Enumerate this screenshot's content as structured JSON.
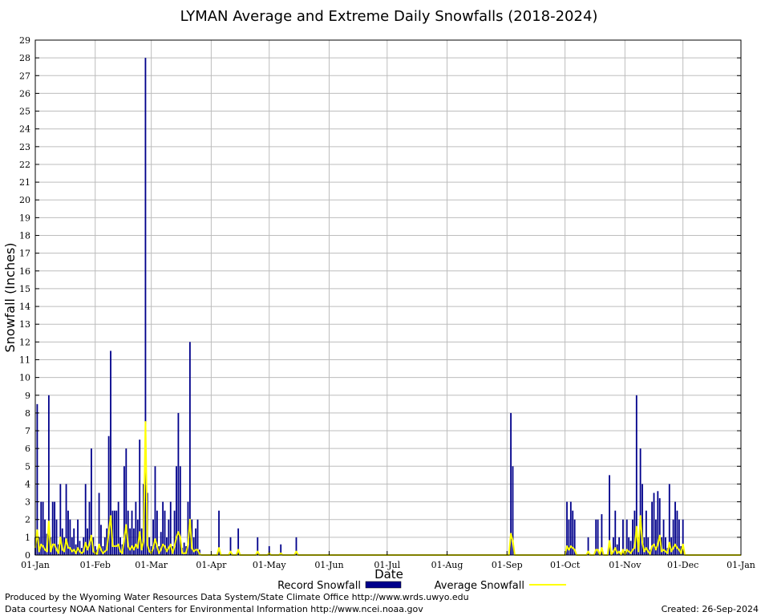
{
  "chart_data": {
    "type": "bar",
    "title": "LYMAN Average and Extreme Daily Snowfalls (2018-2024)",
    "xlabel": "Date",
    "ylabel": "Snowfall (Inches)",
    "ylim": [
      0,
      29
    ],
    "xlim_days": [
      1,
      366
    ],
    "grid": true,
    "x_tick_labels": [
      {
        "label": "01-Jan",
        "day": 1
      },
      {
        "label": "01-Feb",
        "day": 32
      },
      {
        "label": "01-Mar",
        "day": 61
      },
      {
        "label": "01-Apr",
        "day": 92
      },
      {
        "label": "01-May",
        "day": 122
      },
      {
        "label": "01-Jun",
        "day": 153
      },
      {
        "label": "01-Jul",
        "day": 183
      },
      {
        "label": "01-Aug",
        "day": 214
      },
      {
        "label": "01-Sep",
        "day": 245
      },
      {
        "label": "01-Oct",
        "day": 275
      },
      {
        "label": "01-Nov",
        "day": 306
      },
      {
        "label": "01-Dec",
        "day": 336
      },
      {
        "label": "01-Jan",
        "day": 366
      }
    ],
    "y_ticks": [
      0,
      1,
      2,
      3,
      4,
      5,
      6,
      7,
      8,
      9,
      10,
      11,
      12,
      13,
      14,
      15,
      16,
      17,
      18,
      19,
      20,
      21,
      22,
      23,
      24,
      25,
      26,
      27,
      28,
      29
    ],
    "legend": [
      {
        "name": "Record Snowfall",
        "color": "#00008b"
      },
      {
        "name": "Average Snowfall",
        "color": "#ffff00"
      }
    ],
    "series": [
      {
        "name": "Record Snowfall",
        "color": "#00008b",
        "points": [
          [
            1,
            1
          ],
          [
            2,
            8.5
          ],
          [
            3,
            1
          ],
          [
            4,
            3
          ],
          [
            5,
            3
          ],
          [
            6,
            2
          ],
          [
            7,
            1.2
          ],
          [
            8,
            9
          ],
          [
            9,
            1
          ],
          [
            10,
            3
          ],
          [
            11,
            3
          ],
          [
            12,
            2
          ],
          [
            13,
            0.6
          ],
          [
            14,
            4
          ],
          [
            15,
            1.5
          ],
          [
            16,
            1
          ],
          [
            17,
            4
          ],
          [
            18,
            2.5
          ],
          [
            19,
            2
          ],
          [
            20,
            1
          ],
          [
            21,
            1.5
          ],
          [
            22,
            0.6
          ],
          [
            23,
            2
          ],
          [
            24,
            0.8
          ],
          [
            25,
            0.4
          ],
          [
            26,
            1
          ],
          [
            27,
            4
          ],
          [
            28,
            1.5
          ],
          [
            29,
            3
          ],
          [
            30,
            6
          ],
          [
            31,
            1
          ],
          [
            32,
            0.5
          ],
          [
            33,
            0.3
          ],
          [
            34,
            3.5
          ],
          [
            35,
            1.7
          ],
          [
            36,
            0.5
          ],
          [
            37,
            1
          ],
          [
            38,
            1.5
          ],
          [
            39,
            6.7
          ],
          [
            40,
            11.5
          ],
          [
            41,
            2.5
          ],
          [
            42,
            2.5
          ],
          [
            43,
            2.5
          ],
          [
            44,
            3
          ],
          [
            45,
            1
          ],
          [
            46,
            0.6
          ],
          [
            47,
            5
          ],
          [
            48,
            6
          ],
          [
            49,
            2.5
          ],
          [
            50,
            1.5
          ],
          [
            51,
            2.5
          ],
          [
            52,
            1.5
          ],
          [
            53,
            3
          ],
          [
            54,
            2
          ],
          [
            55,
            6.5
          ],
          [
            56,
            1.5
          ],
          [
            57,
            4
          ],
          [
            58,
            28
          ],
          [
            59,
            3.5
          ],
          [
            60,
            1
          ],
          [
            61,
            0.5
          ],
          [
            62,
            2
          ],
          [
            63,
            5
          ],
          [
            64,
            2.5
          ],
          [
            65,
            0.5
          ],
          [
            66,
            1.3
          ],
          [
            67,
            3
          ],
          [
            68,
            2.5
          ],
          [
            69,
            1
          ],
          [
            70,
            2
          ],
          [
            71,
            3
          ],
          [
            72,
            0.5
          ],
          [
            73,
            2.5
          ],
          [
            74,
            5
          ],
          [
            75,
            8
          ],
          [
            76,
            5
          ],
          [
            77,
            0.4
          ],
          [
            78,
            0.7
          ],
          [
            79,
            0.5
          ],
          [
            80,
            3
          ],
          [
            81,
            12
          ],
          [
            82,
            2
          ],
          [
            83,
            1
          ],
          [
            84,
            1.5
          ],
          [
            85,
            2
          ],
          [
            86,
            0.3
          ],
          [
            96,
            2.5
          ],
          [
            102,
            1
          ],
          [
            106,
            1.5
          ],
          [
            116,
            1
          ],
          [
            122,
            0.5
          ],
          [
            128,
            0.6
          ],
          [
            136,
            1
          ],
          [
            247,
            8
          ],
          [
            248,
            5
          ],
          [
            276,
            3
          ],
          [
            277,
            2
          ],
          [
            278,
            3
          ],
          [
            279,
            2.5
          ],
          [
            280,
            2
          ],
          [
            287,
            1
          ],
          [
            291,
            2
          ],
          [
            292,
            2
          ],
          [
            294,
            2.3
          ],
          [
            298,
            4.5
          ],
          [
            300,
            1
          ],
          [
            301,
            2.5
          ],
          [
            302,
            0.6
          ],
          [
            303,
            1
          ],
          [
            305,
            2
          ],
          [
            307,
            2
          ],
          [
            308,
            1
          ],
          [
            309,
            0.8
          ],
          [
            310,
            2
          ],
          [
            311,
            2.5
          ],
          [
            312,
            9
          ],
          [
            313,
            1
          ],
          [
            314,
            6
          ],
          [
            315,
            4
          ],
          [
            316,
            1
          ],
          [
            317,
            2.5
          ],
          [
            318,
            1
          ],
          [
            319,
            0.3
          ],
          [
            320,
            3
          ],
          [
            321,
            3.5
          ],
          [
            322,
            2
          ],
          [
            323,
            3.6
          ],
          [
            324,
            3.2
          ],
          [
            325,
            1
          ],
          [
            326,
            2
          ],
          [
            327,
            1
          ],
          [
            328,
            0.4
          ],
          [
            329,
            4
          ],
          [
            330,
            1
          ],
          [
            331,
            2
          ],
          [
            332,
            3
          ],
          [
            333,
            2.5
          ],
          [
            334,
            2
          ],
          [
            335,
            0.5
          ],
          [
            336,
            2
          ]
        ]
      },
      {
        "name": "Average Snowfall",
        "color": "#ffff00",
        "points": [
          [
            1,
            0.4
          ],
          [
            2,
            1.4
          ],
          [
            3,
            0.2
          ],
          [
            4,
            0.6
          ],
          [
            5,
            0.5
          ],
          [
            6,
            0.3
          ],
          [
            7,
            0.2
          ],
          [
            8,
            1.9
          ],
          [
            9,
            0.2
          ],
          [
            10,
            0.6
          ],
          [
            11,
            0.6
          ],
          [
            12,
            0.3
          ],
          [
            13,
            0.1
          ],
          [
            14,
            1.0
          ],
          [
            15,
            0.3
          ],
          [
            16,
            0.2
          ],
          [
            17,
            0.9
          ],
          [
            18,
            0.4
          ],
          [
            19,
            0.4
          ],
          [
            20,
            0.2
          ],
          [
            21,
            0.3
          ],
          [
            22,
            0.1
          ],
          [
            23,
            0.4
          ],
          [
            24,
            0.2
          ],
          [
            25,
            0.1
          ],
          [
            26,
            0.2
          ],
          [
            27,
            0.7
          ],
          [
            28,
            0.3
          ],
          [
            29,
            0.6
          ],
          [
            30,
            1.1
          ],
          [
            31,
            0.2
          ],
          [
            32,
            0.1
          ],
          [
            33,
            0.05
          ],
          [
            34,
            0.6
          ],
          [
            35,
            0.3
          ],
          [
            36,
            0.1
          ],
          [
            37,
            0.2
          ],
          [
            38,
            0.3
          ],
          [
            39,
            1.3
          ],
          [
            40,
            2.2
          ],
          [
            41,
            0.5
          ],
          [
            42,
            0.5
          ],
          [
            43,
            0.5
          ],
          [
            44,
            0.6
          ],
          [
            45,
            0.2
          ],
          [
            46,
            0.1
          ],
          [
            47,
            0.9
          ],
          [
            48,
            1.7
          ],
          [
            49,
            0.5
          ],
          [
            50,
            0.3
          ],
          [
            51,
            0.5
          ],
          [
            52,
            0.3
          ],
          [
            53,
            0.6
          ],
          [
            54,
            0.4
          ],
          [
            55,
            1.3
          ],
          [
            56,
            0.3
          ],
          [
            57,
            0.8
          ],
          [
            58,
            7.5
          ],
          [
            59,
            0.6
          ],
          [
            60,
            0.2
          ],
          [
            61,
            0.1
          ],
          [
            62,
            0.4
          ],
          [
            63,
            0.9
          ],
          [
            64,
            0.5
          ],
          [
            65,
            0.1
          ],
          [
            66,
            0.3
          ],
          [
            67,
            0.6
          ],
          [
            68,
            0.5
          ],
          [
            69,
            0.2
          ],
          [
            70,
            0.4
          ],
          [
            71,
            0.6
          ],
          [
            72,
            0.1
          ],
          [
            73,
            0.5
          ],
          [
            74,
            1.0
          ],
          [
            75,
            1.3
          ],
          [
            76,
            1.0
          ],
          [
            77,
            0.1
          ],
          [
            78,
            0.1
          ],
          [
            79,
            0.1
          ],
          [
            80,
            0.6
          ],
          [
            81,
            2.0
          ],
          [
            82,
            0.4
          ],
          [
            83,
            0.2
          ],
          [
            84,
            0.3
          ],
          [
            85,
            0.3
          ],
          [
            86,
            0.05
          ],
          [
            96,
            0.4
          ],
          [
            102,
            0.2
          ],
          [
            106,
            0.3
          ],
          [
            116,
            0.2
          ],
          [
            122,
            0.1
          ],
          [
            128,
            0.1
          ],
          [
            136,
            0.2
          ],
          [
            247,
            1.2
          ],
          [
            248,
            0.8
          ],
          [
            276,
            0.5
          ],
          [
            277,
            0.3
          ],
          [
            278,
            0.5
          ],
          [
            279,
            0.4
          ],
          [
            280,
            0.3
          ],
          [
            287,
            0.2
          ],
          [
            291,
            0.3
          ],
          [
            292,
            0.3
          ],
          [
            294,
            0.4
          ],
          [
            298,
            0.8
          ],
          [
            300,
            0.2
          ],
          [
            301,
            0.4
          ],
          [
            302,
            0.1
          ],
          [
            303,
            0.2
          ],
          [
            305,
            0.3
          ],
          [
            307,
            0.3
          ],
          [
            308,
            0.2
          ],
          [
            309,
            0.1
          ],
          [
            310,
            0.3
          ],
          [
            311,
            0.4
          ],
          [
            312,
            1.6
          ],
          [
            313,
            0.2
          ],
          [
            314,
            2.2
          ],
          [
            315,
            0.7
          ],
          [
            316,
            0.2
          ],
          [
            317,
            0.4
          ],
          [
            318,
            0.2
          ],
          [
            319,
            0.05
          ],
          [
            320,
            0.5
          ],
          [
            321,
            0.6
          ],
          [
            322,
            0.3
          ],
          [
            323,
            0.6
          ],
          [
            324,
            1.1
          ],
          [
            325,
            0.2
          ],
          [
            326,
            0.3
          ],
          [
            327,
            0.2
          ],
          [
            328,
            0.1
          ],
          [
            329,
            0.7
          ],
          [
            330,
            0.2
          ],
          [
            331,
            0.4
          ],
          [
            332,
            0.6
          ],
          [
            333,
            0.4
          ],
          [
            334,
            0.3
          ],
          [
            335,
            0.1
          ],
          [
            336,
            0.6
          ]
        ]
      }
    ]
  },
  "footer": {
    "produced_by": "Produced by the Wyoming Water Resources Data System/State Climate Office http://www.wrds.uwyo.edu",
    "courtesy": "Data courtesy NOAA National Centers for Environmental Information http://www.ncei.noaa.gov",
    "created": "Created:  26-Sep-2024"
  }
}
